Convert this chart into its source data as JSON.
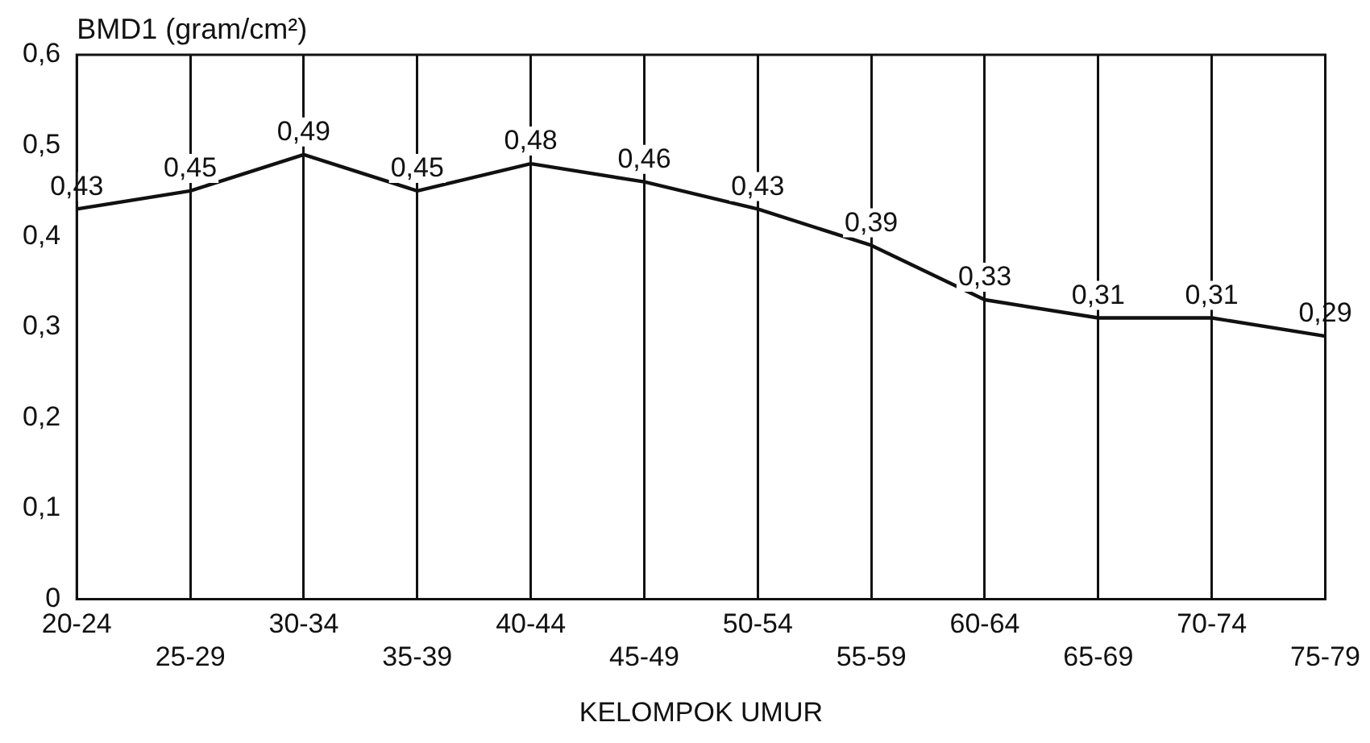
{
  "chart_data": {
    "type": "line",
    "ylabel": "BMD1 (gram/cm²)",
    "xlabel": "KELOMPOK UMUR",
    "categories": [
      "20-24",
      "25-29",
      "30-34",
      "35-39",
      "40-44",
      "45-49",
      "50-54",
      "55-59",
      "60-64",
      "65-69",
      "70-74",
      "75-79"
    ],
    "series": [
      {
        "color": "#111111",
        "values": [
          0.43,
          0.45,
          0.49,
          0.45,
          0.48,
          0.46,
          0.43,
          0.39,
          0.33,
          0.31,
          0.31,
          0.29
        ],
        "value_labels": [
          "0,43",
          "0,45",
          "0,49",
          "0,45",
          "0,48",
          "0,46",
          "0,43",
          "0,39",
          "0,33",
          "0,31",
          "0,31",
          "0,29"
        ]
      }
    ],
    "ylim": [
      0,
      0.6
    ],
    "yticks": [
      0,
      {
        "value": 0.1,
        "label": "0,1"
      },
      {
        "value": 0.2,
        "label": "0,2"
      },
      {
        "value": 0.3,
        "label": "0,3"
      },
      {
        "value": 0.4,
        "label": "0,4"
      },
      {
        "value": 0.5,
        "label": "0,5"
      },
      {
        "value": 0.6,
        "label": "0,6"
      }
    ],
    "grid": "x",
    "legend": false,
    "marker": "none",
    "line_style": "solid"
  }
}
